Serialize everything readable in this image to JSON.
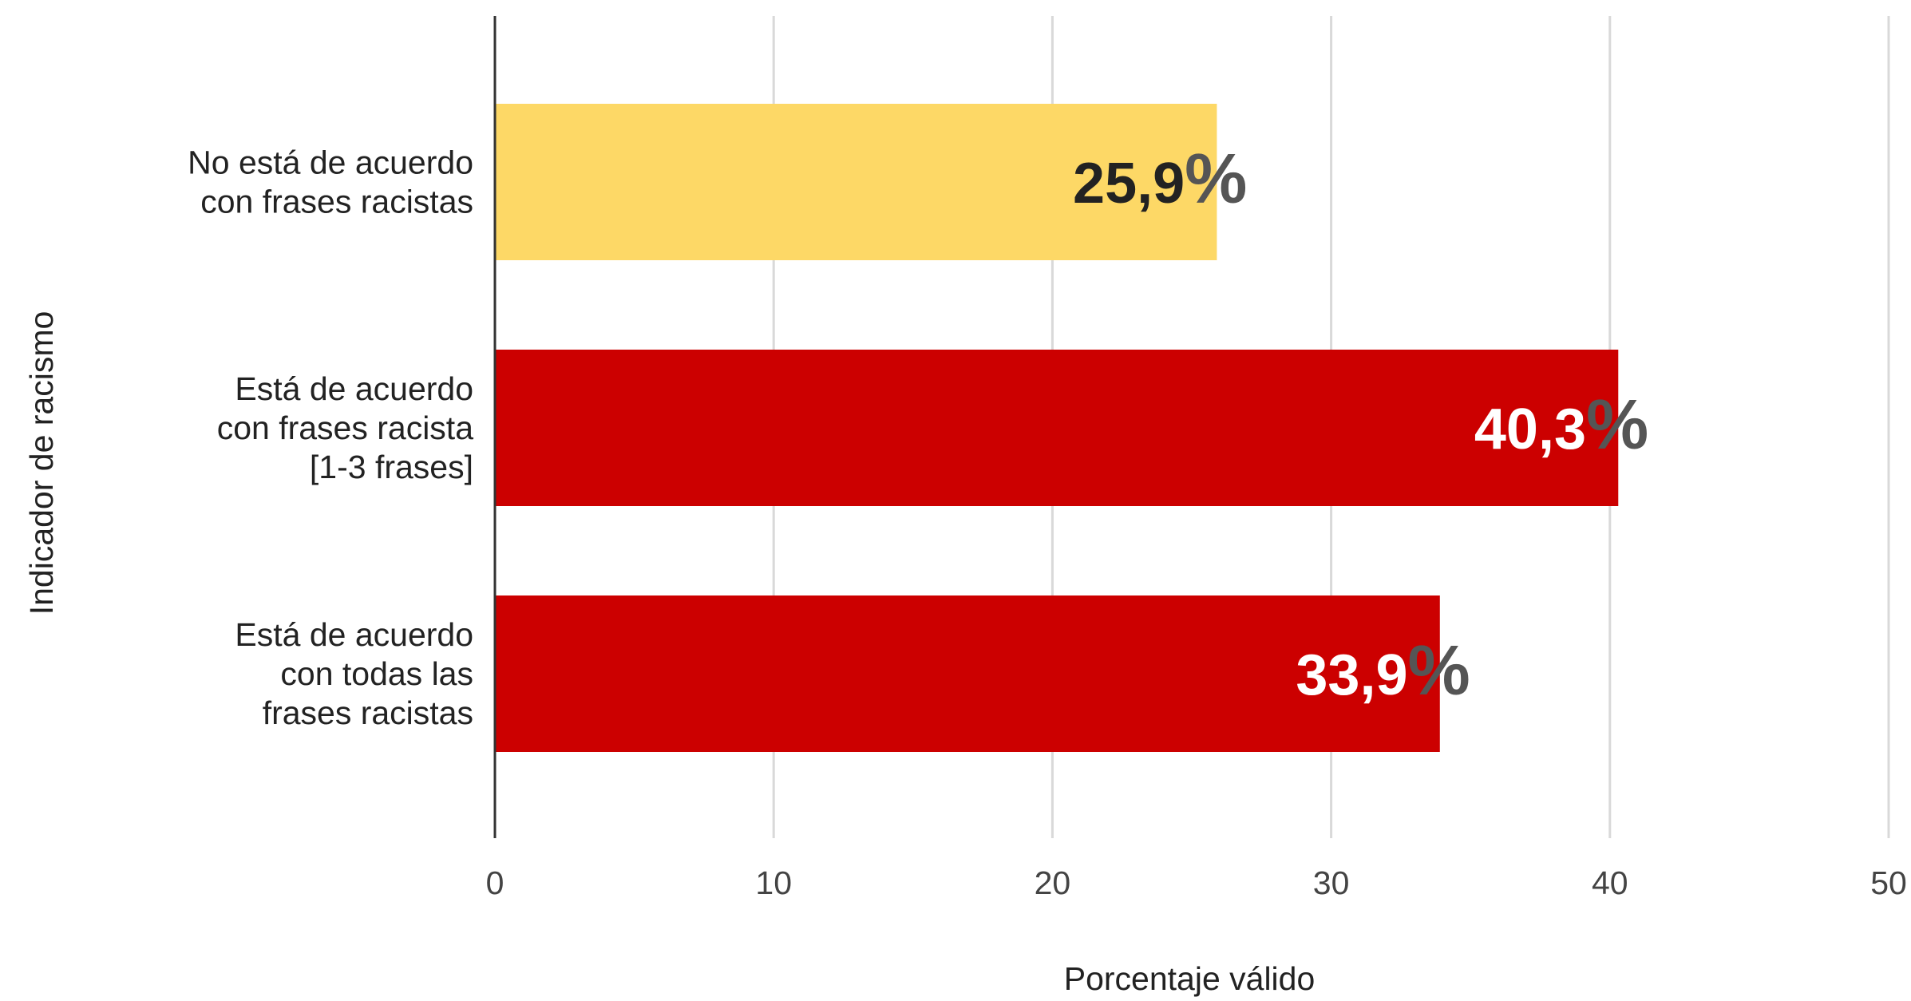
{
  "chart_data": {
    "type": "bar",
    "orientation": "horizontal",
    "categories": [
      [
        "No está de acuerdo",
        "con frases racistas"
      ],
      [
        "Está de acuerdo",
        "con frases racista",
        "[1-3 frases]"
      ],
      [
        "Está de acuerdo",
        "con todas las",
        "frases racistas"
      ]
    ],
    "values": [
      25.9,
      40.3,
      33.9
    ],
    "data_labels": [
      {
        "number": "25,9",
        "unit": "%"
      },
      {
        "number": "40,3",
        "unit": "%"
      },
      {
        "number": "33,9",
        "unit": "%"
      }
    ],
    "bar_colors": [
      "#fdd866",
      "#cc0000",
      "#cc0000"
    ],
    "label_colors": [
      "#222222",
      "#ffffff",
      "#ffffff"
    ],
    "xlabel": "Porcentaje válido",
    "ylabel": "Indicador de racismo",
    "xlim": [
      0,
      50
    ],
    "xticks": [
      0,
      10,
      20,
      30,
      40,
      50
    ],
    "grid": "vertical",
    "legend": "none"
  }
}
